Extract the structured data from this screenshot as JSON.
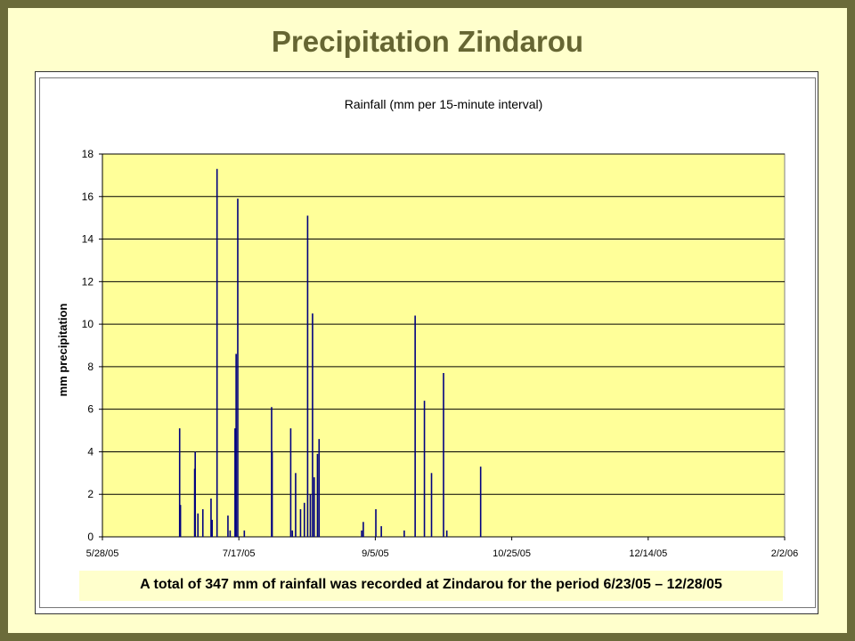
{
  "slide": {
    "title": "Precipitation Zindarou",
    "caption": "A total of 347 mm of rainfall was recorded at Zindarou for the period 6/23/05 – 12/28/05"
  },
  "colors": {
    "page_border": "#6b6b3a",
    "slide_background": "#ffffcc",
    "title": "#666633",
    "plot_area": "#ffff99",
    "bars": "#000080"
  },
  "chart_data": {
    "type": "bar",
    "title": "Rainfall (mm per 15-minute interval)",
    "xlabel": "",
    "ylabel": "mm precipitation",
    "ylim": [
      0,
      18
    ],
    "y_ticks": [
      0,
      2,
      4,
      6,
      8,
      10,
      12,
      14,
      16,
      18
    ],
    "x_tick_labels": [
      "5/28/05",
      "7/17/05",
      "9/5/05",
      "10/25/05",
      "12/14/05",
      "2/2/06"
    ],
    "x_ticks_days": [
      0,
      50,
      100,
      150,
      200,
      250
    ],
    "grid": true,
    "legend": "none",
    "series": [
      {
        "x_days": [
          28.3,
          28.6,
          33.8,
          34.0,
          35.0,
          36.8,
          39.8,
          40.2,
          42.0,
          46.0,
          46.8,
          48.6,
          49.0,
          49.6,
          52.0,
          62.0,
          62.2,
          69.0,
          69.6,
          70.8,
          72.6,
          74.0,
          75.2,
          76.2,
          77.0,
          77.6,
          78.8,
          79.4,
          95.0,
          95.6,
          100.2,
          102.2,
          110.6,
          114.6,
          118.0,
          120.6,
          125.0,
          126.2,
          138.6
        ],
        "values": [
          5.1,
          1.5,
          3.2,
          4.0,
          1.1,
          1.3,
          1.8,
          0.8,
          17.3,
          1.0,
          0.3,
          5.1,
          8.6,
          15.9,
          0.3,
          6.1,
          4.0,
          5.1,
          0.3,
          3.0,
          1.3,
          1.6,
          15.1,
          2.0,
          10.5,
          2.8,
          3.9,
          4.6,
          0.3,
          0.7,
          1.3,
          0.5,
          0.3,
          10.4,
          6.4,
          3.0,
          7.7,
          0.3,
          3.3
        ]
      }
    ]
  }
}
